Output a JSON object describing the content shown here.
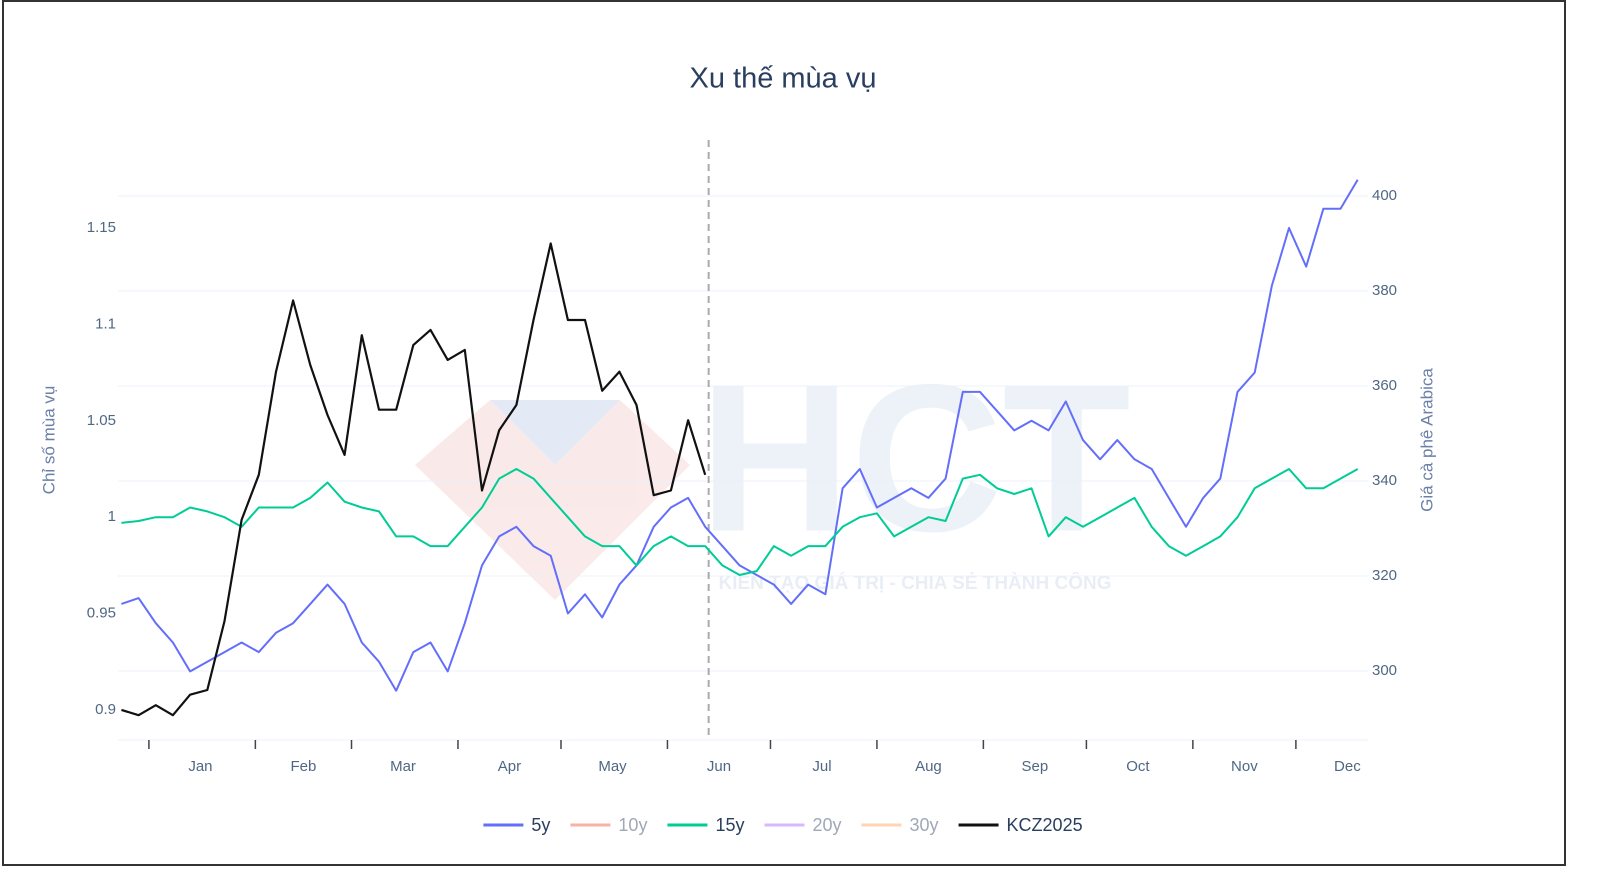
{
  "chart_data": {
    "type": "line",
    "title": "Xu thế mùa vụ",
    "y_label": "Chỉ số mùa vụ",
    "y2_label": "Giá cà phê Arabica",
    "watermark": "HCT",
    "watermark_caption": "KIẾN TẠO GIÁ TRỊ - CHIA SẺ THÀNH CÔNG",
    "x": [
      -8,
      -3,
      2,
      7,
      12,
      17,
      22,
      27,
      32,
      37,
      42,
      47,
      52,
      57,
      62,
      67,
      72,
      77,
      82,
      87,
      92,
      97,
      102,
      107,
      112,
      117,
      122,
      127,
      132,
      137,
      142,
      147,
      152,
      157,
      162,
      167,
      172,
      177,
      182,
      187,
      192,
      197,
      202,
      207,
      212,
      217,
      222,
      227,
      232,
      237,
      242,
      247,
      252,
      257,
      262,
      267,
      272,
      277,
      282,
      287,
      292,
      297,
      302,
      307,
      312,
      317,
      322,
      327,
      332,
      337,
      342,
      347,
      352
    ],
    "xlim": [
      -9,
      355
    ],
    "xticks": [
      {
        "value": 15,
        "label": "Jan"
      },
      {
        "value": 45,
        "label": "Feb"
      },
      {
        "value": 74,
        "label": "Mar"
      },
      {
        "value": 105,
        "label": "Apr"
      },
      {
        "value": 135,
        "label": "May"
      },
      {
        "value": 166,
        "label": "Jun"
      },
      {
        "value": 196,
        "label": "Jul"
      },
      {
        "value": 227,
        "label": "Aug"
      },
      {
        "value": 258,
        "label": "Sep"
      },
      {
        "value": 288,
        "label": "Oct"
      },
      {
        "value": 319,
        "label": "Nov"
      },
      {
        "value": 349,
        "label": "Dec"
      }
    ],
    "x_tick_marks": [
      0,
      31,
      59,
      90,
      120,
      151,
      181,
      212,
      243,
      273,
      304,
      334
    ],
    "vline_x": 163,
    "ylim": [
      0.8844,
      1.1801
    ],
    "yticks": [
      0.9,
      0.95,
      1,
      1.05,
      1.1,
      1.15
    ],
    "y2lim": [
      285.47,
      405.47
    ],
    "y2ticks": [
      300,
      320,
      340,
      360,
      380,
      400
    ],
    "grid": true,
    "legend": "bottom",
    "series": [
      {
        "name": "5y",
        "color": "#636efa",
        "values": [
          0.955,
          0.958,
          0.945,
          0.935,
          0.92,
          0.925,
          0.93,
          0.935,
          0.93,
          0.94,
          0.945,
          0.955,
          0.965,
          0.955,
          0.935,
          0.925,
          0.91,
          0.93,
          0.935,
          0.92,
          0.945,
          0.975,
          0.99,
          0.995,
          0.985,
          0.98,
          0.95,
          0.96,
          0.948,
          0.965,
          0.975,
          0.995,
          1.005,
          1.01,
          0.995,
          0.985,
          0.975,
          0.97,
          0.965,
          0.955,
          0.965,
          0.96,
          1.015,
          1.025,
          1.005,
          1.01,
          1.015,
          1.01,
          1.02,
          1.065,
          1.065,
          1.055,
          1.045,
          1.05,
          1.045,
          1.06,
          1.04,
          1.03,
          1.04,
          1.03,
          1.025,
          1.01,
          0.995,
          1.01,
          1.02,
          1.065,
          1.075,
          1.12,
          1.15,
          1.13,
          1.16,
          1.16,
          1.175
        ]
      },
      {
        "name": "10y",
        "color": "#ef553b",
        "visible": "legendonly"
      },
      {
        "name": "15y",
        "color": "#00cc96",
        "values": [
          0.997,
          0.998,
          1.0,
          1.0,
          1.005,
          1.003,
          1.0,
          0.995,
          1.005,
          1.005,
          1.005,
          1.01,
          1.018,
          1.008,
          1.005,
          1.003,
          0.99,
          0.99,
          0.985,
          0.985,
          0.995,
          1.005,
          1.02,
          1.025,
          1.02,
          1.01,
          1.0,
          0.99,
          0.985,
          0.985,
          0.975,
          0.985,
          0.99,
          0.985,
          0.985,
          0.975,
          0.97,
          0.972,
          0.985,
          0.98,
          0.985,
          0.985,
          0.995,
          1.0,
          1.002,
          0.99,
          0.995,
          1.0,
          0.998,
          1.02,
          1.022,
          1.015,
          1.012,
          1.015,
          0.99,
          1.0,
          0.995,
          1.0,
          1.005,
          1.01,
          0.995,
          0.985,
          0.98,
          0.985,
          0.99,
          1.0,
          1.015,
          1.02,
          1.025,
          1.015,
          1.015,
          1.02,
          1.025
        ]
      },
      {
        "name": "20y",
        "color": "#ab63fa",
        "visible": "legendonly"
      },
      {
        "name": "30y",
        "color": "#ffa15a",
        "visible": "legendonly"
      },
      {
        "name": "KCZ2025",
        "color": "#111111",
        "axis": "y2",
        "values": [
          291.8,
          290.7,
          292.8,
          290.7,
          295,
          296,
          310.5,
          331.8,
          341.3,
          363,
          378,
          364.4,
          353.9,
          345.5,
          370.7,
          355,
          355,
          368.6,
          371.8,
          365.5,
          367.6,
          338,
          350.7,
          356,
          373.9,
          390,
          373.9,
          373.9,
          359,
          363,
          356,
          337,
          338,
          352.8,
          341.3,
          null,
          null,
          null,
          null,
          null,
          null,
          null,
          null,
          null,
          null,
          null,
          null,
          null,
          null,
          null,
          null,
          null,
          null,
          null,
          null,
          null,
          null,
          null,
          null,
          null,
          null,
          null,
          null,
          null,
          null,
          null,
          null,
          null,
          null,
          null,
          null,
          null,
          null
        ]
      }
    ]
  }
}
